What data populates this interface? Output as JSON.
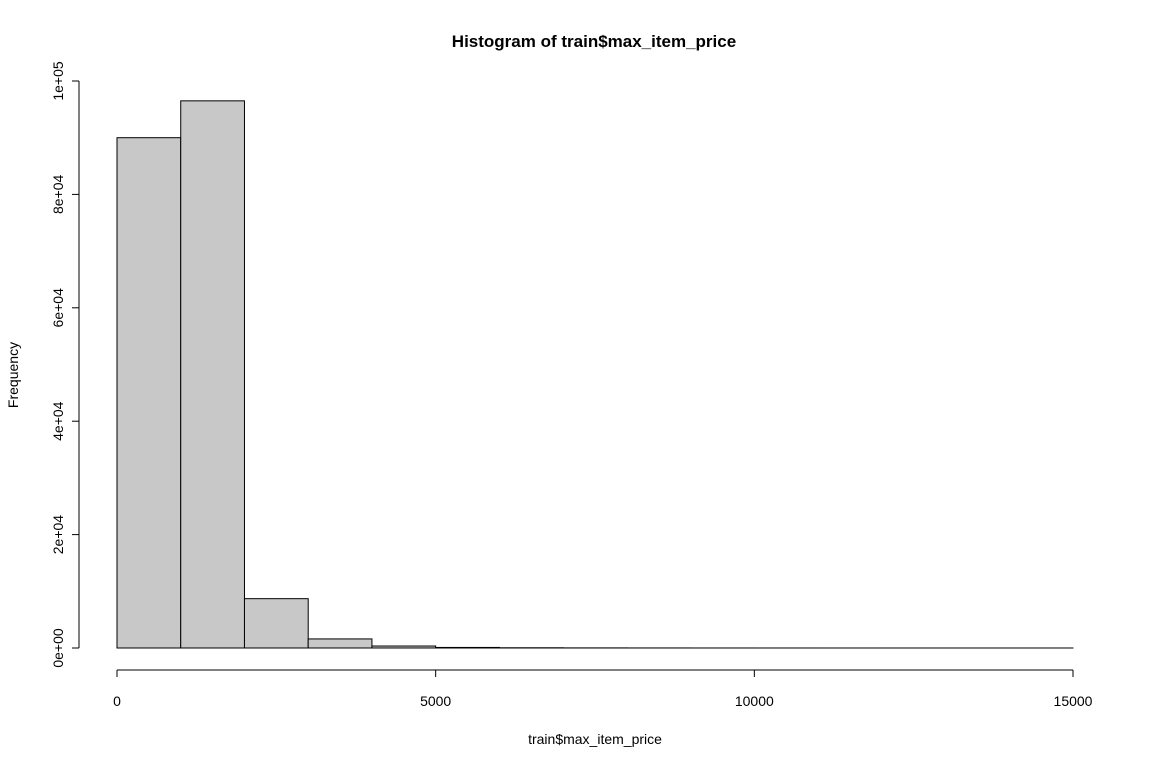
{
  "chart_data": {
    "type": "bar",
    "title": "Histogram of train$max_item_price",
    "xlabel": "train$max_item_price",
    "ylabel": "Frequency",
    "bins": [
      {
        "start": 0,
        "end": 1000,
        "count": 90000
      },
      {
        "start": 1000,
        "end": 2000,
        "count": 96500
      },
      {
        "start": 2000,
        "end": 3000,
        "count": 8700
      },
      {
        "start": 3000,
        "end": 4000,
        "count": 1600
      },
      {
        "start": 4000,
        "end": 5000,
        "count": 350
      },
      {
        "start": 5000,
        "end": 6000,
        "count": 100
      },
      {
        "start": 6000,
        "end": 7000,
        "count": 40
      },
      {
        "start": 7000,
        "end": 8000,
        "count": 20
      },
      {
        "start": 8000,
        "end": 9000,
        "count": 10
      },
      {
        "start": 9000,
        "end": 10000,
        "count": 5
      },
      {
        "start": 10000,
        "end": 11000,
        "count": 3
      },
      {
        "start": 11000,
        "end": 12000,
        "count": 2
      },
      {
        "start": 12000,
        "end": 13000,
        "count": 1
      },
      {
        "start": 13000,
        "end": 14000,
        "count": 1
      },
      {
        "start": 14000,
        "end": 15000,
        "count": 1
      }
    ],
    "xlim": [
      0,
      15000
    ],
    "ylim": [
      0,
      100000
    ],
    "x_ticks": [
      0,
      5000,
      10000,
      15000
    ],
    "x_tick_labels": [
      "0",
      "5000",
      "10000",
      "15000"
    ],
    "y_ticks": [
      0,
      20000,
      40000,
      60000,
      80000,
      100000
    ],
    "y_tick_labels": [
      "0e+00",
      "2e+04",
      "4e+04",
      "6e+04",
      "8e+04",
      "1e+05"
    ],
    "bar_fill": "#c8c8c8",
    "bar_stroke": "#000000",
    "grid": false,
    "legend": "none"
  }
}
